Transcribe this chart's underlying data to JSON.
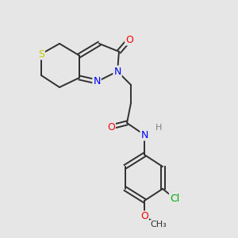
{
  "background_color": "#e6e6e6",
  "atom_colors": {
    "S": "#c8c800",
    "N": "#0000ff",
    "O": "#ff0000",
    "Cl": "#00aa00",
    "C": "#303030",
    "H": "#808080"
  },
  "bond_color": "#303030",
  "bond_width": 1.4,
  "figsize": [
    3.0,
    3.0
  ],
  "dpi": 100
}
